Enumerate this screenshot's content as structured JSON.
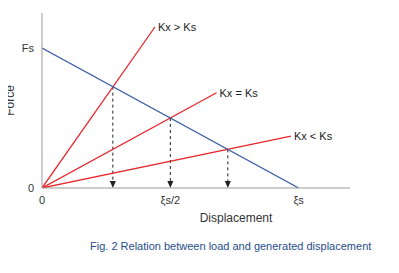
{
  "chart_data": {
    "type": "line",
    "title": "Fig. 2 Relation between load and generated displacement",
    "x_label": "Displacement",
    "y_label": "Force",
    "xlim": [
      0,
      1.2
    ],
    "ylim": [
      0,
      1.25
    ],
    "xticks": [
      0,
      {
        "value": 0.5,
        "label": "ξs/2"
      },
      {
        "value": 1,
        "label": "ξs"
      }
    ],
    "yticks": [
      0,
      {
        "value": 1,
        "label": "Fs"
      }
    ],
    "grid": false,
    "series": [
      {
        "name": "Kx > Ks",
        "color": "#e8262b",
        "x": [
          0,
          0.44
        ],
        "values": [
          0,
          1.15
        ]
      },
      {
        "name": "Kx = Ks",
        "color": "#e8262b",
        "x": [
          0,
          0.68
        ],
        "values": [
          0,
          0.68
        ]
      },
      {
        "name": "Kx < Ks",
        "color": "#e8262b",
        "x": [
          0,
          0.97
        ],
        "values": [
          0,
          0.37
        ]
      },
      {
        "color": "#3a5fa8",
        "x": [
          0,
          1
        ],
        "values": [
          1,
          0
        ]
      }
    ],
    "drop_lines": {
      "x": [
        0.276,
        0.5,
        0.724
      ],
      "values": [
        0.724,
        0.5,
        0.276
      ]
    }
  }
}
